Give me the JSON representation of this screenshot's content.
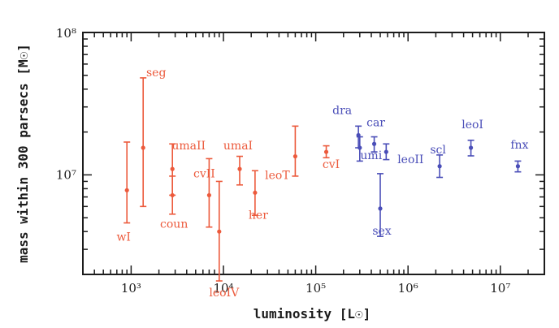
{
  "chart_data": {
    "type": "scatter",
    "xlabel": "luminosity [L☉]",
    "ylabel": "mass within 300 parsecs [M☉]",
    "x_scale": "log",
    "y_scale": "log",
    "xlim": [
      300,
      30000000
    ],
    "ylim": [
      2000000,
      100000000
    ],
    "x_tick_labels": [
      "10³",
      "10⁴",
      "10⁵",
      "10⁶",
      "10⁷"
    ],
    "y_tick_labels": [
      "10⁶",
      "10⁷",
      "10⁸"
    ],
    "grid": false,
    "colors": {
      "red": "#ec5a3c",
      "blue": "#4a4eb8"
    },
    "series": [
      {
        "color": "red",
        "points": [
          {
            "label": "wI",
            "x": 900,
            "y": 7800000.0,
            "y_low": 4600000.0,
            "y_high": 17000000.0
          },
          {
            "label": "seg",
            "x": 1350,
            "y": 15500000.0,
            "y_low": 6000000.0,
            "y_high": 48000000.0
          },
          {
            "label": "umaII",
            "x": 2800,
            "y": 11000000.0,
            "y_low": 7200000.0,
            "y_high": 16500000.0
          },
          {
            "label": "coun",
            "x": 2800,
            "y": 7200000.0,
            "y_low": 5300000.0,
            "y_high": 9800000.0
          },
          {
            "label": "cvII",
            "x": 7000,
            "y": 7200000.0,
            "y_low": 4300000.0,
            "y_high": 13000000.0
          },
          {
            "label": "leoIV",
            "x": 9000,
            "y": 4000000.0,
            "y_low": 1800000.0,
            "y_high": 9000000.0
          },
          {
            "label": "umaI",
            "x": 15000,
            "y": 11000000.0,
            "y_low": 8500000.0,
            "y_high": 13500000.0
          },
          {
            "label": "her",
            "x": 22000,
            "y": 7500000.0,
            "y_low": 5200000.0,
            "y_high": 10700000.0
          },
          {
            "label": "leoT",
            "x": 60000,
            "y": 13500000.0,
            "y_low": 9800000.0,
            "y_high": 22000000.0
          },
          {
            "label": "cvI",
            "x": 130000,
            "y": 14500000.0,
            "y_low": 13200000.0,
            "y_high": 16000000.0
          }
        ]
      },
      {
        "color": "blue",
        "points": [
          {
            "label": "dra",
            "x": 290000,
            "y": 19000000.0,
            "y_low": 15500000.0,
            "y_high": 22000000.0
          },
          {
            "label": "umi",
            "x": 300000,
            "y": 15500000.0,
            "y_low": 12500000.0,
            "y_high": 18500000.0
          },
          {
            "label": "car",
            "x": 430000,
            "y": 16500000.0,
            "y_low": 14500000.0,
            "y_high": 18500000.0
          },
          {
            "label": "sex",
            "x": 500000,
            "y": 5800000.0,
            "y_low": 3700000.0,
            "y_high": 10200000.0
          },
          {
            "label": "leoII",
            "x": 580000,
            "y": 14500000.0,
            "y_low": 12800000.0,
            "y_high": 16500000.0
          },
          {
            "label": "scl",
            "x": 2200000,
            "y": 11500000.0,
            "y_low": 9600000.0,
            "y_high": 13800000.0
          },
          {
            "label": "leoI",
            "x": 4800000,
            "y": 15500000.0,
            "y_low": 13600000.0,
            "y_high": 17500000.0
          },
          {
            "label": "fnx",
            "x": 15500000,
            "y": 11500000.0,
            "y_low": 10500000.0,
            "y_high": 12500000.0
          }
        ]
      }
    ]
  }
}
